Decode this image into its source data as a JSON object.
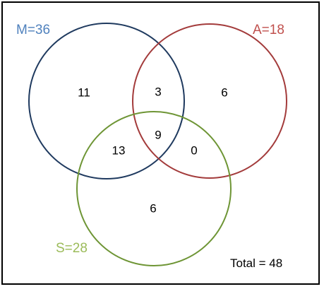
{
  "sets": {
    "m": {
      "label": "M=36",
      "color": "#4f81bd",
      "stroke": "#1f3a5f"
    },
    "a": {
      "label": "A=18",
      "color": "#c0504d",
      "stroke": "#a33b3b"
    },
    "s": {
      "label": "S=28",
      "color": "#9bbb59",
      "stroke": "#6e9535"
    }
  },
  "regions": {
    "m_only": "11",
    "m_a": "3",
    "a_only": "6",
    "m_a_s": "9",
    "m_s": "13",
    "a_s": "0",
    "s_only": "6"
  },
  "total": "Total = 48"
}
